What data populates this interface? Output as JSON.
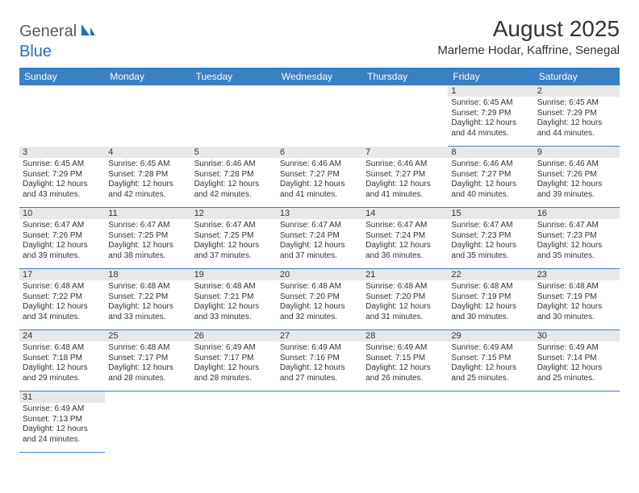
{
  "logo": {
    "general": "General",
    "blue": "Blue"
  },
  "title": "August 2025",
  "location": "Marleme Hodar, Kaffrine, Senegal",
  "colors": {
    "header_bg": "#3b7fc4",
    "header_text": "#ffffff",
    "daynum_bg": "#e8e8e8",
    "cell_border": "#3b7fc4",
    "logo_gray": "#5a5a5a",
    "logo_blue": "#2a6fb5"
  },
  "weekdays": [
    "Sunday",
    "Monday",
    "Tuesday",
    "Wednesday",
    "Thursday",
    "Friday",
    "Saturday"
  ],
  "first_weekday_index": 5,
  "days": [
    {
      "n": 1,
      "sr": "6:45 AM",
      "ss": "7:29 PM",
      "dl": "12 hours and 44 minutes."
    },
    {
      "n": 2,
      "sr": "6:45 AM",
      "ss": "7:29 PM",
      "dl": "12 hours and 44 minutes."
    },
    {
      "n": 3,
      "sr": "6:45 AM",
      "ss": "7:29 PM",
      "dl": "12 hours and 43 minutes."
    },
    {
      "n": 4,
      "sr": "6:45 AM",
      "ss": "7:28 PM",
      "dl": "12 hours and 42 minutes."
    },
    {
      "n": 5,
      "sr": "6:46 AM",
      "ss": "7:28 PM",
      "dl": "12 hours and 42 minutes."
    },
    {
      "n": 6,
      "sr": "6:46 AM",
      "ss": "7:27 PM",
      "dl": "12 hours and 41 minutes."
    },
    {
      "n": 7,
      "sr": "6:46 AM",
      "ss": "7:27 PM",
      "dl": "12 hours and 41 minutes."
    },
    {
      "n": 8,
      "sr": "6:46 AM",
      "ss": "7:27 PM",
      "dl": "12 hours and 40 minutes."
    },
    {
      "n": 9,
      "sr": "6:46 AM",
      "ss": "7:26 PM",
      "dl": "12 hours and 39 minutes."
    },
    {
      "n": 10,
      "sr": "6:47 AM",
      "ss": "7:26 PM",
      "dl": "12 hours and 39 minutes."
    },
    {
      "n": 11,
      "sr": "6:47 AM",
      "ss": "7:25 PM",
      "dl": "12 hours and 38 minutes."
    },
    {
      "n": 12,
      "sr": "6:47 AM",
      "ss": "7:25 PM",
      "dl": "12 hours and 37 minutes."
    },
    {
      "n": 13,
      "sr": "6:47 AM",
      "ss": "7:24 PM",
      "dl": "12 hours and 37 minutes."
    },
    {
      "n": 14,
      "sr": "6:47 AM",
      "ss": "7:24 PM",
      "dl": "12 hours and 36 minutes."
    },
    {
      "n": 15,
      "sr": "6:47 AM",
      "ss": "7:23 PM",
      "dl": "12 hours and 35 minutes."
    },
    {
      "n": 16,
      "sr": "6:47 AM",
      "ss": "7:23 PM",
      "dl": "12 hours and 35 minutes."
    },
    {
      "n": 17,
      "sr": "6:48 AM",
      "ss": "7:22 PM",
      "dl": "12 hours and 34 minutes."
    },
    {
      "n": 18,
      "sr": "6:48 AM",
      "ss": "7:22 PM",
      "dl": "12 hours and 33 minutes."
    },
    {
      "n": 19,
      "sr": "6:48 AM",
      "ss": "7:21 PM",
      "dl": "12 hours and 33 minutes."
    },
    {
      "n": 20,
      "sr": "6:48 AM",
      "ss": "7:20 PM",
      "dl": "12 hours and 32 minutes."
    },
    {
      "n": 21,
      "sr": "6:48 AM",
      "ss": "7:20 PM",
      "dl": "12 hours and 31 minutes."
    },
    {
      "n": 22,
      "sr": "6:48 AM",
      "ss": "7:19 PM",
      "dl": "12 hours and 30 minutes."
    },
    {
      "n": 23,
      "sr": "6:48 AM",
      "ss": "7:19 PM",
      "dl": "12 hours and 30 minutes."
    },
    {
      "n": 24,
      "sr": "6:48 AM",
      "ss": "7:18 PM",
      "dl": "12 hours and 29 minutes."
    },
    {
      "n": 25,
      "sr": "6:48 AM",
      "ss": "7:17 PM",
      "dl": "12 hours and 28 minutes."
    },
    {
      "n": 26,
      "sr": "6:49 AM",
      "ss": "7:17 PM",
      "dl": "12 hours and 28 minutes."
    },
    {
      "n": 27,
      "sr": "6:49 AM",
      "ss": "7:16 PM",
      "dl": "12 hours and 27 minutes."
    },
    {
      "n": 28,
      "sr": "6:49 AM",
      "ss": "7:15 PM",
      "dl": "12 hours and 26 minutes."
    },
    {
      "n": 29,
      "sr": "6:49 AM",
      "ss": "7:15 PM",
      "dl": "12 hours and 25 minutes."
    },
    {
      "n": 30,
      "sr": "6:49 AM",
      "ss": "7:14 PM",
      "dl": "12 hours and 25 minutes."
    },
    {
      "n": 31,
      "sr": "6:49 AM",
      "ss": "7:13 PM",
      "dl": "12 hours and 24 minutes."
    }
  ],
  "labels": {
    "sunrise": "Sunrise:",
    "sunset": "Sunset:",
    "daylight": "Daylight:"
  }
}
